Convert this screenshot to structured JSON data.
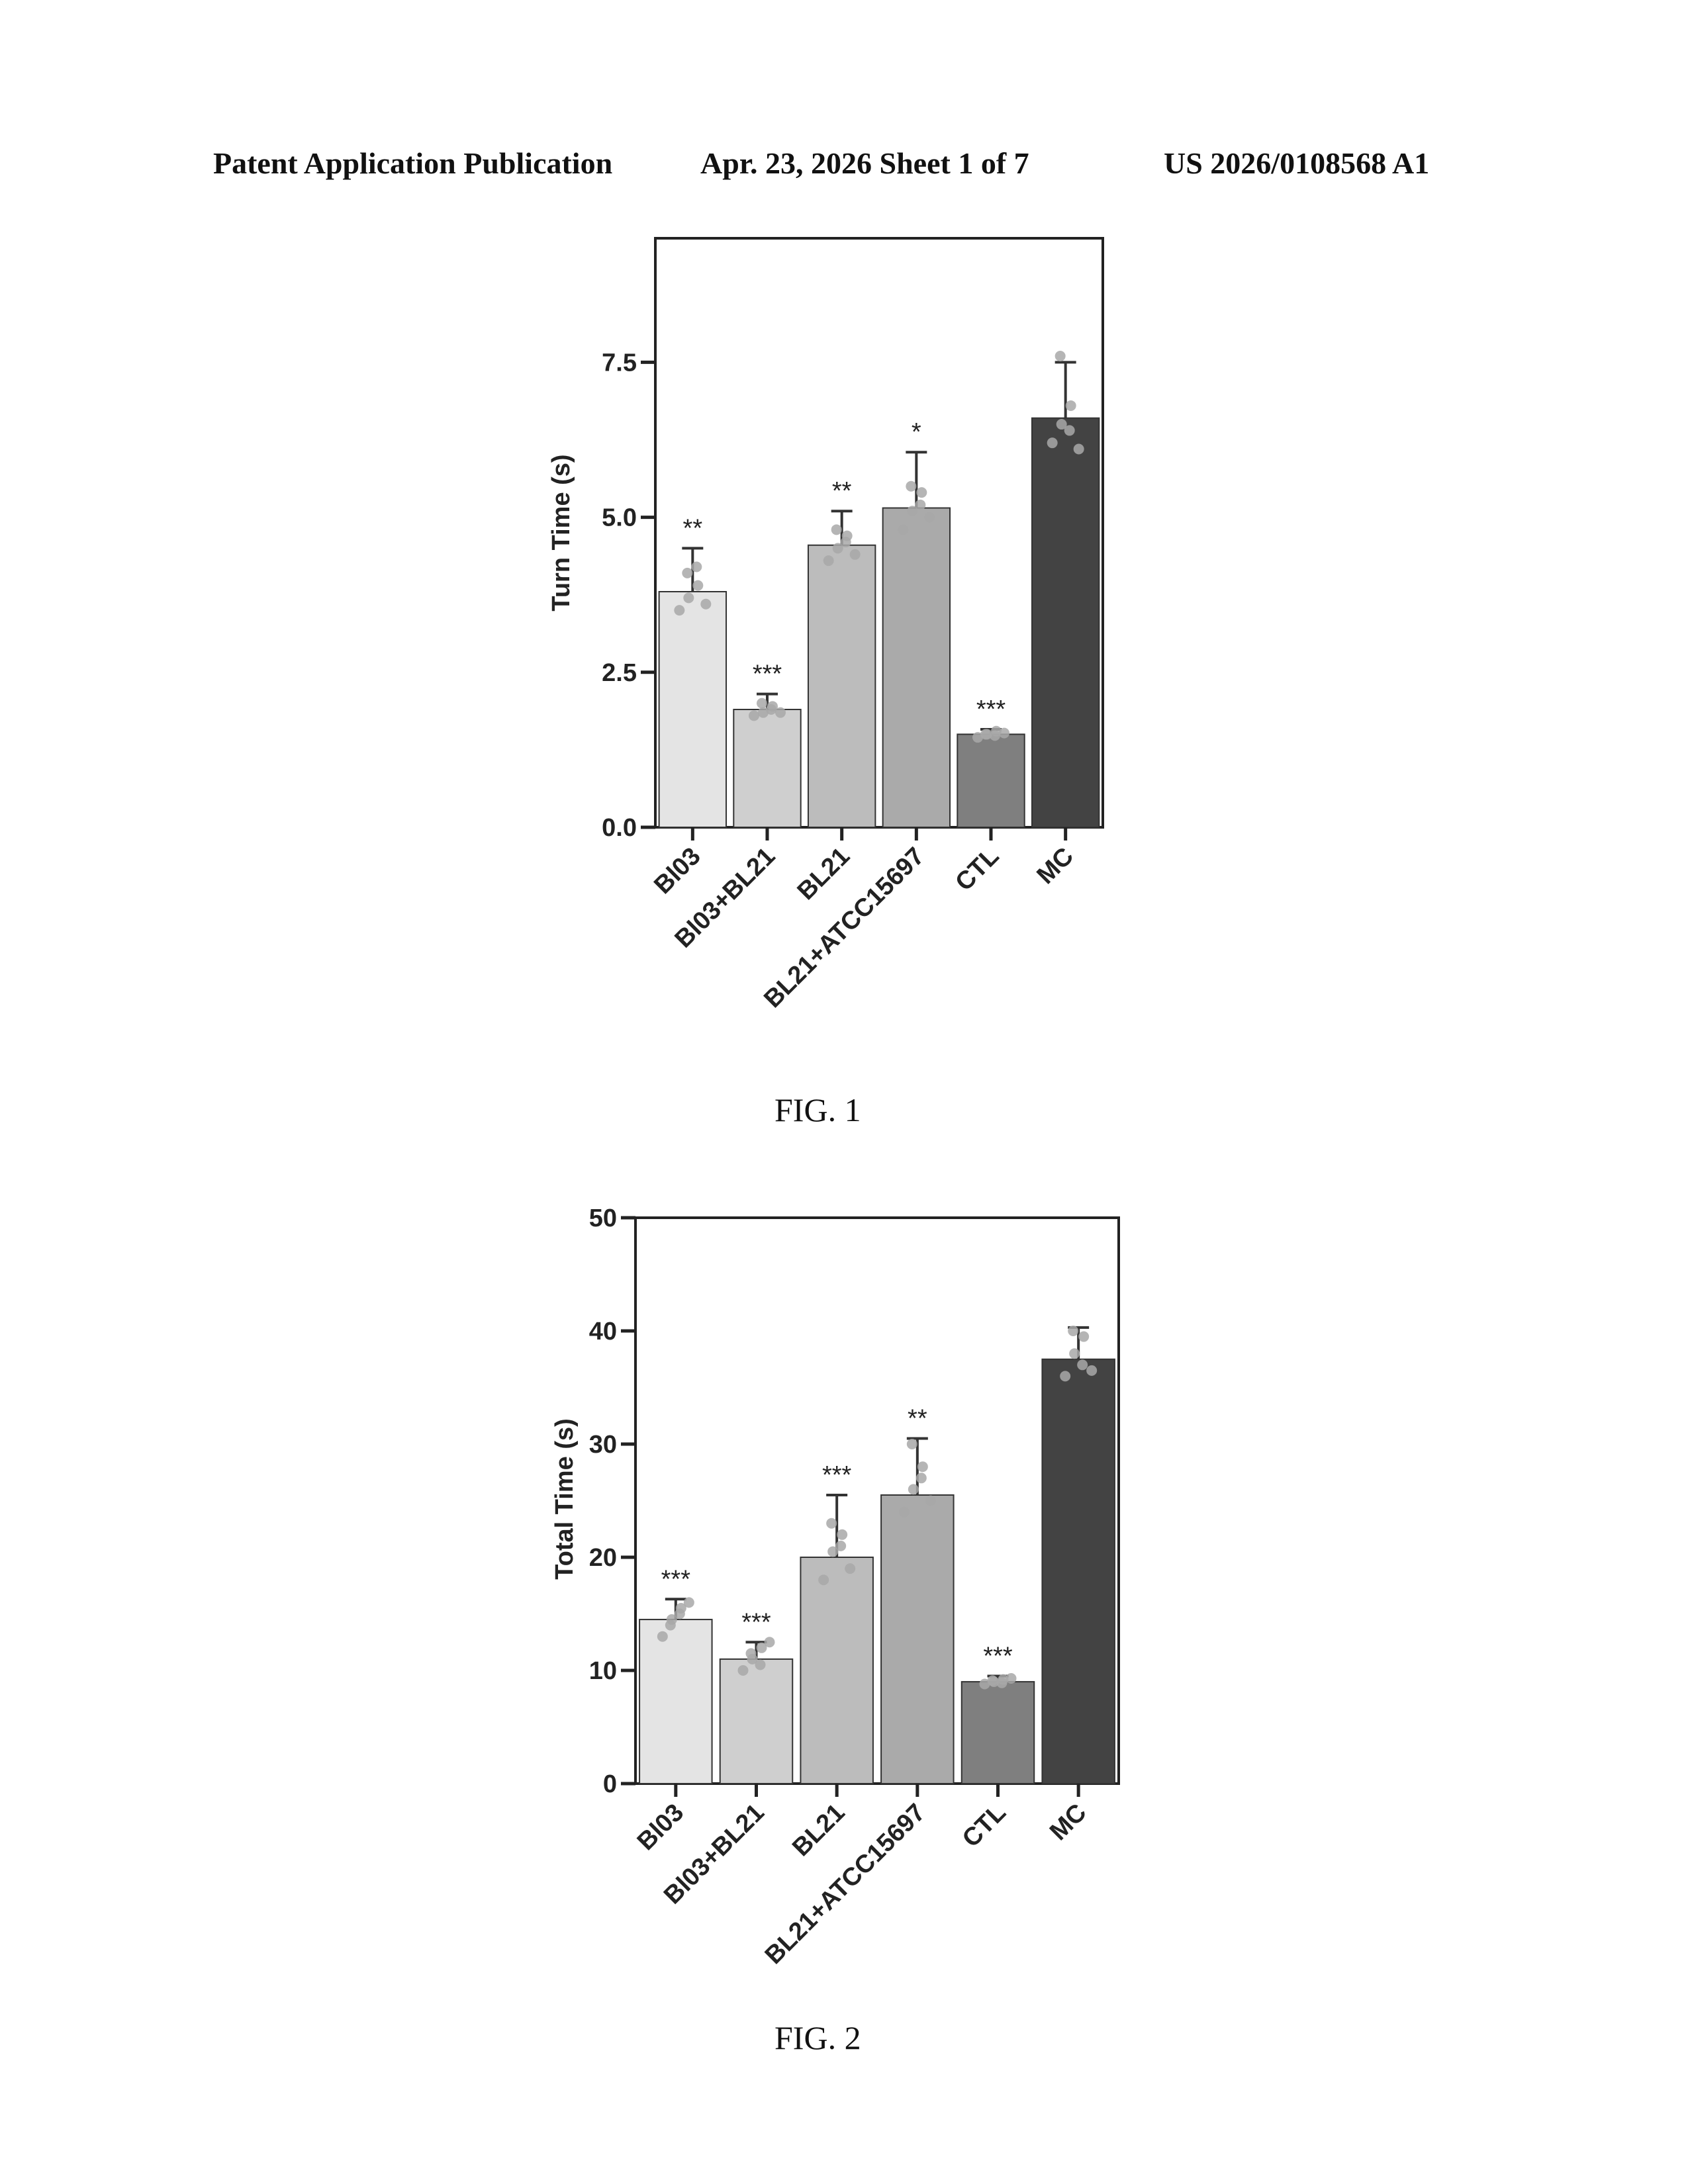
{
  "header": {
    "left": "Patent Application Publication",
    "middle": "Apr. 23, 2026  Sheet 1 of 7",
    "right": "US 2026/0108568 A1"
  },
  "figures": [
    {
      "caption": "FIG. 1"
    },
    {
      "caption": "FIG. 2"
    }
  ],
  "chart_data": [
    {
      "type": "bar",
      "ylabel": "Turn Time (s)",
      "xlabel": "",
      "ylim": [
        0,
        9.5
      ],
      "yticks": [
        0,
        2.5,
        5,
        7.5
      ],
      "ytick_labels": [
        "0.0",
        "2.5",
        "5.0",
        "7.5"
      ],
      "categories": [
        "Bl03",
        "Bl03+BL21",
        "BL21",
        "BL21+ATCC15697",
        "CTL",
        "MC"
      ],
      "values": [
        3.8,
        1.9,
        4.55,
        5.15,
        1.5,
        6.6
      ],
      "errors": [
        0.7,
        0.25,
        0.55,
        0.9,
        0.08,
        0.9
      ],
      "significance": [
        "**",
        "***",
        "**",
        "*",
        "***",
        ""
      ],
      "points": [
        [
          3.5,
          3.7,
          3.9,
          4.1,
          4.2,
          3.6
        ],
        [
          1.8,
          1.85,
          1.95,
          2.0,
          1.9,
          1.85
        ],
        [
          4.3,
          4.5,
          4.7,
          4.8,
          4.6,
          4.4
        ],
        [
          4.8,
          5.1,
          5.4,
          5.5,
          5.2,
          5.0
        ],
        [
          1.45,
          1.5,
          1.55,
          1.5,
          1.48,
          1.52
        ],
        [
          6.2,
          6.5,
          6.8,
          7.6,
          6.4,
          6.1
        ]
      ],
      "fill_colors": [
        "#e4e4e4",
        "#cfcfcf",
        "#bcbcbc",
        "#aaaaaa",
        "#7f7f7f",
        "#434343"
      ],
      "point_color": "#a8a8a8",
      "grid": false
    },
    {
      "type": "bar",
      "ylabel": "Total Time  (s)",
      "xlabel": "",
      "ylim": [
        0,
        50
      ],
      "yticks": [
        0,
        10,
        20,
        30,
        40,
        50
      ],
      "ytick_labels": [
        "0",
        "10",
        "20",
        "30",
        "40",
        "50"
      ],
      "categories": [
        "Bl03",
        "Bl03+BL21",
        "BL21",
        "BL21+ATCC15697",
        "CTL",
        "MC"
      ],
      "values": [
        14.5,
        11.0,
        20.0,
        25.5,
        9.0,
        37.5
      ],
      "errors": [
        1.8,
        1.5,
        5.5,
        5.0,
        0.5,
        2.8
      ],
      "significance": [
        "***",
        "***",
        "***",
        "**",
        "***",
        ""
      ],
      "points": [
        [
          13.0,
          14.5,
          15.5,
          14.0,
          15.0,
          16.0
        ],
        [
          10.0,
          11.0,
          12.0,
          11.5,
          10.5,
          12.5
        ],
        [
          18.0,
          20.5,
          22.0,
          23.0,
          21.0,
          19.0
        ],
        [
          24.0,
          26.0,
          28.0,
          30.0,
          27.0,
          25.0
        ],
        [
          8.8,
          9.0,
          9.2,
          9.1,
          8.9,
          9.3
        ],
        [
          36.0,
          38.0,
          39.5,
          40.0,
          37.0,
          36.5
        ]
      ],
      "fill_colors": [
        "#e4e4e4",
        "#cfcfcf",
        "#bcbcbc",
        "#aaaaaa",
        "#7f7f7f",
        "#434343"
      ],
      "point_color": "#a8a8a8",
      "grid": false
    }
  ]
}
